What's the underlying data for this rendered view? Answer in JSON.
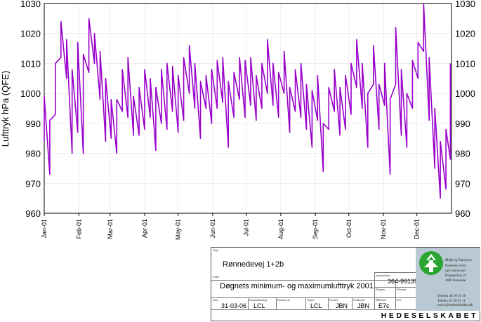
{
  "colors": {
    "series": "#9900cc",
    "axis": "#000000",
    "grid": "#dddddd",
    "panel": "#b9c9d3"
  },
  "chart_data": {
    "type": "line",
    "ylabel": "Lufttryk hPa (QFE)",
    "ylim": [
      960,
      1030
    ],
    "yticks": [
      960,
      970,
      980,
      990,
      1000,
      1010,
      1020,
      1030
    ],
    "ytick_labels": [
      "960",
      "970",
      "980",
      "990",
      "1000",
      "1010",
      "1020",
      "1030"
    ],
    "xlim": [
      1,
      366
    ],
    "xtick_days": [
      1,
      32,
      60,
      91,
      121,
      152,
      182,
      213,
      244,
      274,
      305,
      335
    ],
    "xtick_labels": [
      "Jan-01",
      "Feb-01",
      "Mar-01",
      "Apr-01",
      "May-01",
      "Jun-01",
      "Jul-01",
      "Aug-01",
      "Sep-01",
      "Oct-01",
      "Nov-01",
      "Dec-01"
    ],
    "grid": true,
    "series": [
      {
        "x_day_of_year": [
          1,
          6,
          11,
          16,
          21,
          26,
          31,
          36,
          41,
          46,
          51,
          56,
          61,
          66,
          71,
          76,
          81,
          86,
          91,
          96,
          101,
          106,
          111,
          116,
          121,
          126,
          131,
          136,
          141,
          146,
          151,
          156,
          161,
          166,
          171,
          176,
          181,
          186,
          191,
          196,
          201,
          206,
          211,
          216,
          221,
          226,
          231,
          236,
          241,
          246,
          251,
          256,
          261,
          266,
          271,
          276,
          281,
          286,
          291,
          296,
          301,
          306,
          311,
          316,
          321,
          326,
          331,
          336,
          341,
          346,
          351,
          356,
          361,
          365
        ],
        "min": [
          984,
          973,
          993,
          1012,
          1005,
          980,
          987,
          980,
          1007,
          1010,
          998,
          984,
          985,
          980,
          994,
          992,
          986,
          986,
          988,
          992,
          981,
          990,
          988,
          994,
          987,
          991,
          1000,
          995,
          985,
          995,
          990,
          995,
          997,
          982,
          992,
          998,
          992,
          996,
          991,
          995,
          1000,
          996,
          992,
          1000,
          987,
          994,
          992,
          988,
          982,
          991,
          974,
          988,
          994,
          986,
          988,
          993,
          1002,
          995,
          982,
          1003,
          988,
          996,
          973,
          1003,
          986,
          982,
          995,
          1005,
          1014,
          991,
          975,
          965,
          968,
          978
        ],
        "max": [
          999,
          991,
          1010,
          1024,
          1018,
          1008,
          1017,
          1013,
          1025,
          1020,
          1014,
          1005,
          998,
          998,
          1008,
          1012,
          999,
          1002,
          1008,
          1005,
          1002,
          1008,
          1010,
          1009,
          1006,
          1012,
          1016,
          1010,
          1004,
          1006,
          1008,
          1011,
          1012,
          1004,
          1007,
          1012,
          1011,
          1012,
          1006,
          1010,
          1018,
          1010,
          1007,
          1014,
          1002,
          1008,
          1010,
          1003,
          1001,
          1006,
          990,
          1002,
          1008,
          1002,
          1006,
          1010,
          1018,
          1010,
          1000,
          1016,
          1003,
          1010,
          998,
          1022,
          1008,
          1000,
          1011,
          1017,
          1030,
          1012,
          995,
          984,
          988,
          1010
        ]
      }
    ]
  },
  "title_block": {
    "cap_tegn": "Tegn",
    "project": "Rønnedevej 1+2b",
    "cap_emne": "Emne",
    "subject": "Døgnets minimum- og maximumlufttryk 2001",
    "cap_sag": "Sagsnummer",
    "case_number": "364-99139",
    "cap_bilag": "Bilagsnr.",
    "cap_ekstra": "Ekstranr.",
    "cap_dato": "Dato",
    "date": "31-03-06",
    "cap_dataind": "Dataindtastning",
    "data_entry": "LCL",
    "cap_dataansv": "Dataansvar",
    "cap_tegnet": "Tegnet",
    "drawn": "LCL",
    "cap_kontrol": "Kontrol",
    "checked": "JBN",
    "cap_godkendt": "Godkendt",
    "approved": "JBN",
    "cap_maalestok": "Målestok",
    "scale": "E7c",
    "cap_rev": "Rev.",
    "company_lines": [
      "Miljø og Energi ne",
      "Foreneret Jord",
      "og Grundvand",
      "Ringstedvej 20",
      "4000 Roskilde"
    ],
    "contact_lines": [
      "Telefon 46 30 03 10",
      "Telefax 46 30 03 11",
      "norco@hedeselskabet.dk"
    ],
    "company": "HEDESELSKABET"
  }
}
